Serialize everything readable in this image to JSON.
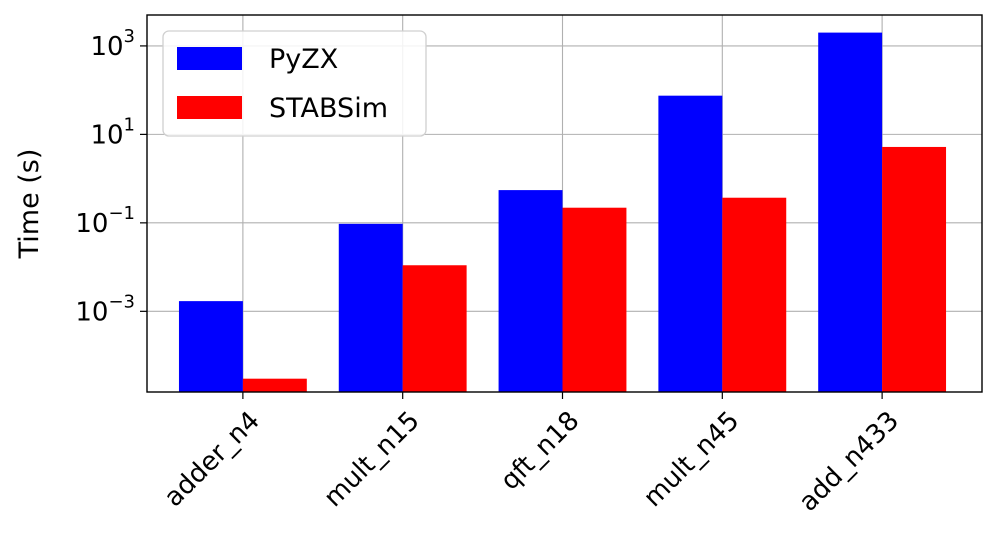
{
  "chart_data": {
    "type": "bar",
    "categories": [
      "adder_n4",
      "mult_n15",
      "qft_n18",
      "mult_n45",
      "add_n433"
    ],
    "series": [
      {
        "name": "PyZX",
        "values": [
          0.0017,
          0.095,
          0.55,
          75,
          2000
        ],
        "color": "#0000ff"
      },
      {
        "name": "STABSim",
        "values": [
          3e-05,
          0.011,
          0.22,
          0.37,
          5.2
        ],
        "color": "#ff0000"
      }
    ],
    "title": "",
    "xlabel": "",
    "ylabel": "Time (s)",
    "yscale": "log",
    "ylim": [
      1.5e-05,
      5000
    ],
    "yticks": [
      {
        "value": 0.001,
        "base": "10",
        "exp": "−3"
      },
      {
        "value": 0.1,
        "base": "10",
        "exp": "−1"
      },
      {
        "value": 10,
        "base": "10",
        "exp": "1"
      },
      {
        "value": 1000,
        "base": "10",
        "exp": "3"
      }
    ],
    "grid": true,
    "legend": "top-left",
    "xtick_rotation": 45
  }
}
